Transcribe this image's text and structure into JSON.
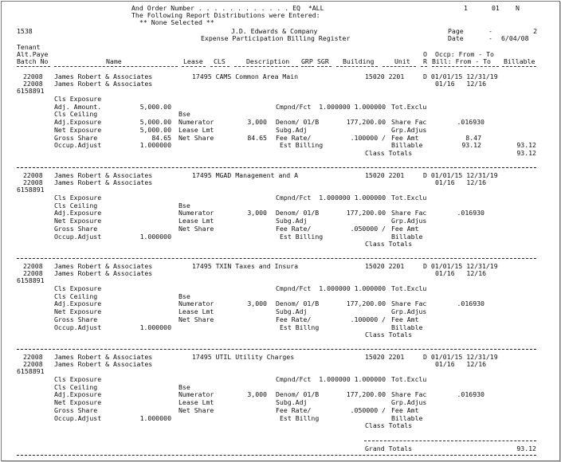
{
  "header": {
    "and_order_line": "And Order Number . . . . . . . . . . . . EQ  *ALL",
    "right_codes": [
      "1",
      "01",
      "N"
    ],
    "distributions_line": "The Following Report Distributions were Entered:",
    "none_selected": "** None Selected **",
    "report_id": "1538",
    "company": "J.D. Edwards & Company",
    "report_title": "Expense Participation Billing Register",
    "page_label": "Page",
    "page_dash": "-",
    "page_number": "2",
    "date_label": "Date",
    "date_dash": "-",
    "date_value": "6/04/08"
  },
  "columns": {
    "tenant": "Tenant",
    "alt_paye": "Alt.Paye",
    "batch_no": "Batch No",
    "name": "Name",
    "lease": "Lease",
    "cls": "CLS",
    "description": "Description",
    "grp": "GRP",
    "sgr": "SGR",
    "building": "Building",
    "unit": "Unit",
    "o": "O",
    "r": "R",
    "occp": "Occp: From - To",
    "bill": "Bill: From - To",
    "billable": "Billable"
  },
  "sections": [
    {
      "tenant_no": "22008",
      "tenant_name": "James Robert & Associates",
      "lease_cls_desc": "17495 CAMS Common Area Main",
      "building_unit": "15020 2201",
      "r_occp": "D 01/01/15 12/31/19",
      "alt_no": "22008",
      "alt_name": "James Robert & Associates",
      "bill_range": "01/16   12/16",
      "batch": "6158891",
      "lines": [
        {
          "label": "Cls Exposure",
          "value": ""
        },
        {
          "label": "Adj. Amount.",
          "value": "5,000.00"
        },
        {
          "label": "Cls Ceiling",
          "value": ""
        },
        {
          "label": "Adj.Exposure",
          "value": "5,000.00"
        },
        {
          "label": "Net Exposure",
          "value": "5,000.00"
        },
        {
          "label": "Gross Share",
          "value": "84.65"
        },
        {
          "label": "Occup.Adjust",
          "value": "1.000000"
        }
      ],
      "calc": {
        "bse": "Bse",
        "numerator": "Numerator",
        "numerator_val": "3,000",
        "lease_lmt": "Lease Lmt",
        "net_share": "Net Share",
        "net_share_val": "84.65",
        "cmpnd": "Cmpnd/Fct  1.000000 1.000000",
        "denom": "Denom/ 01/B",
        "denom_val": "177,200.00",
        "subg": "Subg.Adj",
        "fee_rate": "Fee Rate/",
        "fee_rate_val": ".100000 /",
        "est_billing": "Est Billing",
        "tot_exclu": "Tot.Exclu",
        "share_fac": "Share Fac",
        "share_fac_val": ".016930",
        "grp_adjus": "Grp.Adjus",
        "fee_amt": "Fee Amt",
        "fee_amt_val": "8.47",
        "billable": "Billable",
        "billable_val": "93.12",
        "billable_total": "93.12",
        "class_totals": "Class Totals",
        "class_totals_val": "93.12"
      }
    },
    {
      "tenant_no": "22008",
      "tenant_name": "James Robert & Associates",
      "lease_cls_desc": "17495 MGAD Management and A",
      "building_unit": "15020 2201",
      "r_occp": "D 01/01/15 12/31/19",
      "alt_no": "22008",
      "alt_name": "James Robert & Associates",
      "bill_range": "01/16   12/16",
      "batch": "6158891",
      "lines": [
        {
          "label": "Cls Exposure",
          "value": ""
        },
        {
          "label": "Cls Ceiling",
          "value": ""
        },
        {
          "label": "Adj.Exposure",
          "value": ""
        },
        {
          "label": "Net Exposure",
          "value": ""
        },
        {
          "label": "Gross Share",
          "value": ""
        },
        {
          "label": "Occup.Adjust",
          "value": "1.000000"
        }
      ],
      "calc": {
        "bse": "Bse",
        "numerator": "Numerator",
        "numerator_val": "3,000",
        "lease_lmt": "Lease Lmt",
        "net_share": "Net Share",
        "net_share_val": "",
        "cmpnd": "Cmpnd/Fct  1.000000 1.000000",
        "denom": "Denom/ 01/B",
        "denom_val": "177,200.00",
        "subg": "Subg.Adj",
        "fee_rate": "Fee Rate/",
        "fee_rate_val": ".050000 /",
        "est_billing": "Est Billing",
        "tot_exclu": "Tot.Exclu",
        "share_fac": "Share Fac",
        "share_fac_val": ".016930",
        "grp_adjus": "Grp.Adjus",
        "fee_amt": "Fee Amt",
        "fee_amt_val": "",
        "billable": "Billable",
        "billable_val": "",
        "billable_total": "",
        "class_totals": "Class Totals",
        "class_totals_val": ""
      }
    },
    {
      "tenant_no": "22008",
      "tenant_name": "James Robert & Associates",
      "lease_cls_desc": "17495 TXIN Taxes and Insura",
      "building_unit": "15020 2201",
      "r_occp": "D 01/01/15 12/31/19",
      "alt_no": "22008",
      "alt_name": "James Robert & Associates",
      "bill_range": "01/16   12/16",
      "batch": "6158891",
      "lines": [
        {
          "label": "Cls Exposure",
          "value": ""
        },
        {
          "label": "Cls Ceiling",
          "value": ""
        },
        {
          "label": "Adj.Exposure",
          "value": ""
        },
        {
          "label": "Net Exposure",
          "value": ""
        },
        {
          "label": "Gross Share",
          "value": ""
        },
        {
          "label": "Occup.Adjust",
          "value": "1.000000"
        }
      ],
      "calc": {
        "bse": "Bse",
        "numerator": "Numerator",
        "numerator_val": "3,000",
        "lease_lmt": "Lease Lmt",
        "net_share": "Net Share",
        "net_share_val": "",
        "cmpnd": "Cmpnd/Fct  1.000000 1.000000",
        "denom": "Denom/ 01/B",
        "denom_val": "177,200.00",
        "subg": "Subg.Adj",
        "fee_rate": "Fee Rate/",
        "fee_rate_val": ".100000 /",
        "est_billing": "Est Billng",
        "tot_exclu": "Tot.Exclu",
        "share_fac": "Share Fac",
        "share_fac_val": ".016930",
        "grp_adjus": "Grp.Adjus",
        "fee_amt": "Fee Amt",
        "fee_amt_val": "",
        "billable": "Billable",
        "billable_val": "",
        "billable_total": "",
        "class_totals": "Class Totals",
        "class_totals_val": ""
      }
    },
    {
      "tenant_no": "22008",
      "tenant_name": "James Robert & Associates",
      "lease_cls_desc": "17495 UTIL Utility Charges",
      "building_unit": "15020 2201",
      "r_occp": "D 01/01/15 12/31/19",
      "alt_no": "22008",
      "alt_name": "James Robert & Associates",
      "bill_range": "01/16   12/16",
      "batch": "6158891",
      "lines": [
        {
          "label": "Cls Exposure",
          "value": ""
        },
        {
          "label": "Cls Ceiling",
          "value": ""
        },
        {
          "label": "Adj.Exposure",
          "value": ""
        },
        {
          "label": "Net Exposure",
          "value": ""
        },
        {
          "label": "Gross Share",
          "value": ""
        },
        {
          "label": "Occup.Adjust",
          "value": "1.000000"
        }
      ],
      "calc": {
        "bse": "Bse",
        "numerator": "Numerator",
        "numerator_val": "3,000",
        "lease_lmt": "Lease Lmt",
        "net_share": "Net Share",
        "net_share_val": "",
        "cmpnd": "Cmpnd/Fct  1.000000 1.000000",
        "denom": "Denom/ 01/B",
        "denom_val": "177,200.00",
        "subg": "Subg.Adj",
        "fee_rate": "Fee Rate/",
        "fee_rate_val": ".050000 /",
        "est_billing": "Est Billng",
        "tot_exclu": "Tot.Exclu",
        "share_fac": "Share Fac",
        "share_fac_val": ".016930",
        "grp_adjus": "Grp.Adjus",
        "fee_amt": "Fee Amt",
        "fee_amt_val": "",
        "billable": "Billable",
        "billable_val": "",
        "billable_total": "",
        "class_totals": "Class Totals",
        "class_totals_val": ""
      }
    }
  ],
  "grand_totals": {
    "label": "Grand Totals",
    "value": "93.12"
  }
}
